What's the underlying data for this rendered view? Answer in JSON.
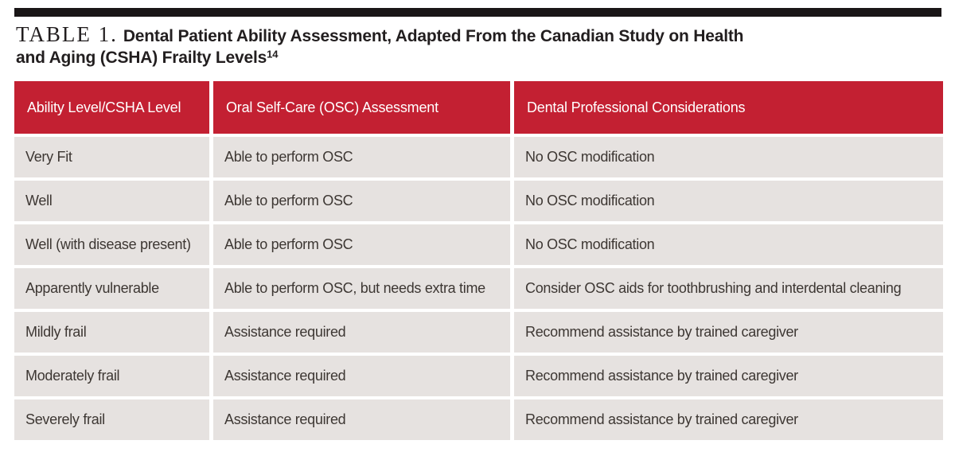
{
  "colors": {
    "accent": "#c32032",
    "bar": "#1a1617",
    "row-bg": "#e6e2e0",
    "header-text": "#ffffff",
    "body-text": "#3d3733",
    "title-text": "#221e1f",
    "page-bg": "#ffffff"
  },
  "title": {
    "label": "TABLE 1.",
    "line1": "Dental Patient Ability Assessment, Adapted From the Canadian Study on Health",
    "line2": "and Aging (CSHA) Frailty Levels",
    "reference": "14"
  },
  "table": {
    "columns": [
      "Ability Level/CSHA Level",
      "Oral Self-Care (OSC) Assessment",
      "Dental Professional Considerations"
    ],
    "rows": [
      [
        "Very Fit",
        "Able to perform OSC",
        "No OSC modification"
      ],
      [
        "Well",
        "Able to perform OSC",
        "No OSC modification"
      ],
      [
        "Well (with disease present)",
        "Able to perform OSC",
        "No OSC modification"
      ],
      [
        "Apparently vulnerable",
        "Able to perform OSC, but needs extra time",
        "Consider OSC aids for toothbrushing and interdental cleaning"
      ],
      [
        "Mildly frail",
        "Assistance required",
        "Recommend assistance by trained caregiver"
      ],
      [
        "Moderately frail",
        "Assistance required",
        "Recommend assistance by trained caregiver"
      ],
      [
        "Severely frail",
        "Assistance required",
        "Recommend assistance by trained caregiver"
      ]
    ]
  }
}
